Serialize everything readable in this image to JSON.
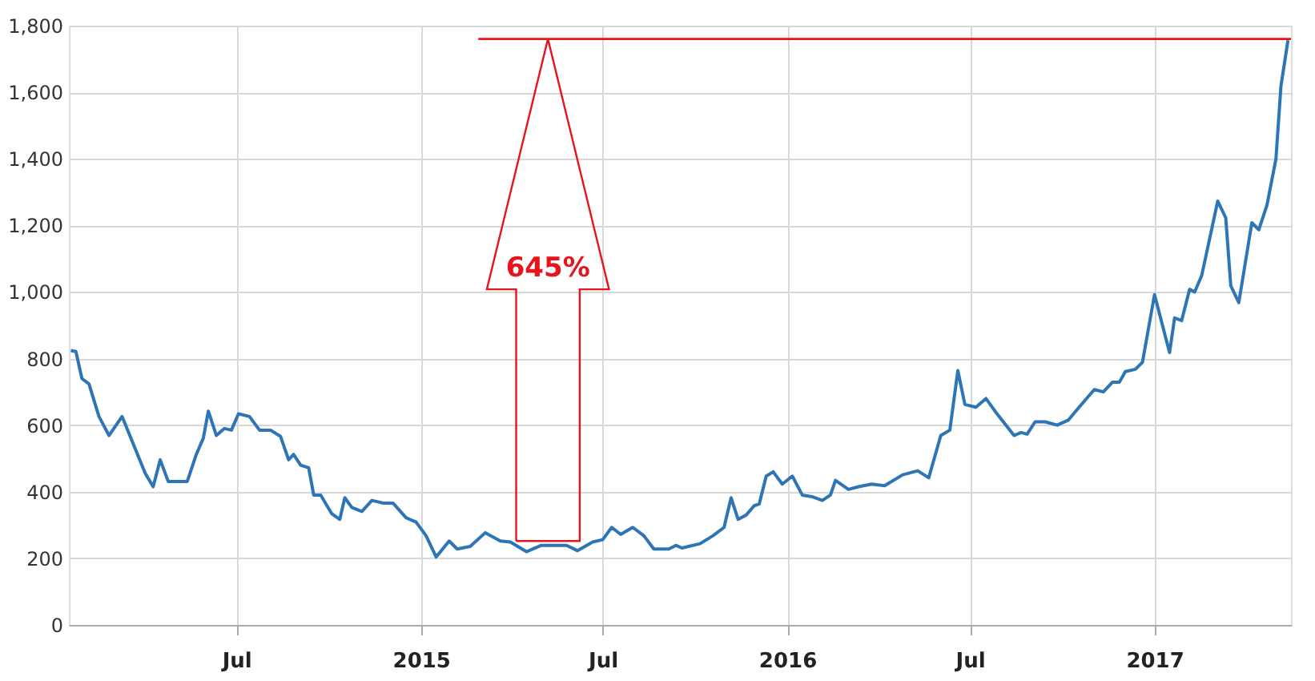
{
  "chart_data": {
    "type": "line",
    "xlim": [
      "2014-01-15",
      "2017-05-17"
    ],
    "ylim": [
      0,
      1800
    ],
    "xticks": [
      {
        "value": "2014-07-01",
        "label": "Jul"
      },
      {
        "value": "2015-01-01",
        "label": "2015"
      },
      {
        "value": "2015-07-01",
        "label": "Jul"
      },
      {
        "value": "2016-01-01",
        "label": "2016"
      },
      {
        "value": "2016-07-01",
        "label": "Jul"
      },
      {
        "value": "2017-01-01",
        "label": "2017"
      }
    ],
    "yticks": [
      0,
      200,
      400,
      600,
      800,
      {
        "value": 1000,
        "label": "1,000"
      },
      {
        "value": 1200,
        "label": "1,200"
      },
      {
        "value": 1400,
        "label": "1,400"
      },
      {
        "value": 1600,
        "label": "1,600"
      },
      {
        "value": 1800,
        "label": "1,800"
      }
    ],
    "grid": true,
    "legend": false,
    "marker": "none",
    "line_style": "solid",
    "x": [
      "2014-01-17",
      "2014-01-22",
      "2014-01-28",
      "2014-02-04",
      "2014-02-14",
      "2014-02-24",
      "2014-03-09",
      "2014-04-01",
      "2014-04-09",
      "2014-04-16",
      "2014-04-24",
      "2014-05-13",
      "2014-05-22",
      "2014-05-29",
      "2014-06-03",
      "2014-06-11",
      "2014-06-19",
      "2014-06-26",
      "2014-07-03",
      "2014-07-14",
      "2014-07-24",
      "2014-08-04",
      "2014-08-14",
      "2014-08-22",
      "2014-08-27",
      "2014-09-03",
      "2014-09-11",
      "2014-09-16",
      "2014-09-23",
      "2014-10-04",
      "2014-10-12",
      "2014-10-17",
      "2014-10-24",
      "2014-11-03",
      "2014-11-13",
      "2014-11-24",
      "2014-12-04",
      "2014-12-17",
      "2014-12-27",
      "2015-01-06",
      "2015-01-16",
      "2015-01-29",
      "2015-02-06",
      "2015-02-19",
      "2015-03-06",
      "2015-03-21",
      "2015-03-31",
      "2015-04-16",
      "2015-05-01",
      "2015-05-26",
      "2015-06-06",
      "2015-06-21",
      "2015-07-01",
      "2015-07-10",
      "2015-07-19",
      "2015-07-31",
      "2015-08-11",
      "2015-08-21",
      "2015-09-05",
      "2015-09-12",
      "2015-09-18",
      "2015-10-06",
      "2015-10-19",
      "2015-10-30",
      "2015-11-06",
      "2015-11-13",
      "2015-11-21",
      "2015-11-29",
      "2015-12-04",
      "2015-12-11",
      "2015-12-18",
      "2015-12-27",
      "2016-01-06",
      "2016-01-16",
      "2016-01-26",
      "2016-02-05",
      "2016-02-13",
      "2016-02-18",
      "2016-03-02",
      "2016-03-12",
      "2016-03-25",
      "2016-04-07",
      "2016-04-25",
      "2016-05-10",
      "2016-05-21",
      "2016-06-02",
      "2016-06-11",
      "2016-06-19",
      "2016-06-26",
      "2016-07-07",
      "2016-07-17",
      "2016-07-28",
      "2016-08-14",
      "2016-08-21",
      "2016-08-27",
      "2016-09-04",
      "2016-09-14",
      "2016-09-26",
      "2016-10-07",
      "2016-10-17",
      "2016-11-02",
      "2016-11-11",
      "2016-11-20",
      "2016-11-27",
      "2016-12-03",
      "2016-12-13",
      "2016-12-20",
      "2017-01-01",
      "2017-01-16",
      "2017-01-21",
      "2017-01-28",
      "2017-02-05",
      "2017-02-10",
      "2017-02-17",
      "2017-03-05",
      "2017-03-13",
      "2017-03-18",
      "2017-03-26",
      "2017-04-08",
      "2017-04-15",
      "2017-04-23",
      "2017-05-02",
      "2017-05-07",
      "2017-05-14"
    ],
    "series": [
      {
        "color": "#2e75b6",
        "values": [
          824,
          821,
          740,
          724,
          626,
          569,
          626,
          456,
          415,
          496,
          431,
          431,
          512,
          561,
          642,
          569,
          590,
          585,
          634,
          626,
          585,
          585,
          566,
          496,
          512,
          480,
          472,
          390,
          390,
          334,
          317,
          382,
          353,
          341,
          374,
          366,
          366,
          322,
          309,
          268,
          204,
          252,
          228,
          236,
          277,
          252,
          249,
          220,
          239,
          239,
          223,
          249,
          256,
          293,
          272,
          293,
          268,
          228,
          228,
          239,
          231,
          244,
          268,
          293,
          382,
          317,
          330,
          358,
          363,
          447,
          460,
          423,
          447,
          390,
          385,
          374,
          390,
          434,
          407,
          415,
          423,
          418,
          451,
          463,
          442,
          569,
          585,
          764,
          662,
          654,
          680,
          634,
          569,
          578,
          573,
          610,
          610,
          600,
          615,
          651,
          707,
          700,
          729,
          729,
          761,
          768,
          789,
          992,
          818,
          922,
          914,
          1008,
          1000,
          1049,
          1273,
          1223,
          1019,
          968,
          1208,
          1187,
          1260,
          1399,
          1618,
          1756
        ]
      }
    ],
    "ref_lines": [
      {
        "axis": "y",
        "value": 1760,
        "color": "#e8141b"
      }
    ],
    "annotations": [
      "645%"
    ]
  }
}
